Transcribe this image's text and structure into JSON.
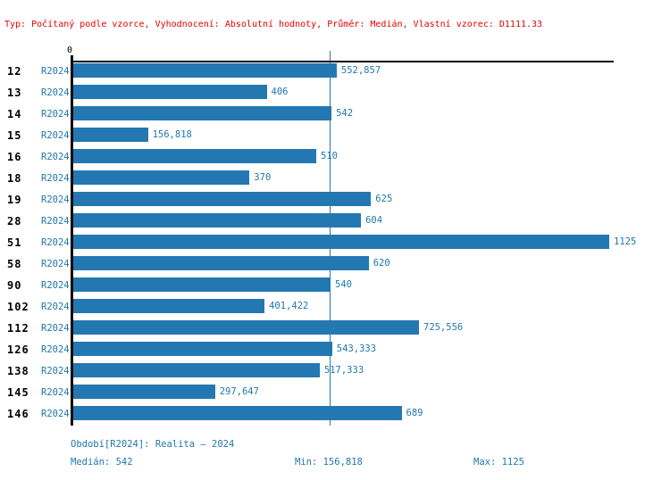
{
  "header": {
    "text": "Typ: Počítaný podle vzorce, Vyhodnocení: Absolutní hodnoty, Průměr: Medián, Vlastní vzorec: D1111.33"
  },
  "axis": {
    "zero_label": "0"
  },
  "chart_data": {
    "type": "bar",
    "orientation": "horizontal",
    "title": "",
    "xlabel": "",
    "ylabel": "",
    "xlim": [
      0,
      1125
    ],
    "grid": false,
    "categories": [
      "12",
      "13",
      "14",
      "15",
      "16",
      "18",
      "19",
      "28",
      "51",
      "58",
      "90",
      "102",
      "112",
      "126",
      "138",
      "145",
      "146"
    ],
    "series_label": "R2024",
    "values": [
      552.857,
      406,
      542,
      156.818,
      510,
      370,
      625,
      604,
      1125,
      620,
      540,
      401.422,
      725.556,
      543.333,
      517.333,
      297.647,
      689
    ],
    "value_labels": [
      "552,857",
      "406",
      "542",
      "156,818",
      "510",
      "370",
      "625",
      "604",
      "1125",
      "620",
      "540",
      "401,422",
      "725,556",
      "543,333",
      "517,333",
      "297,647",
      "689"
    ],
    "median_reference_line": 542
  },
  "footer": {
    "period": "Období[R2024]: Realita – 2024",
    "median": "Medián: 542",
    "min": "Min: 156,818",
    "max": "Max: 1125"
  },
  "colors": {
    "bar": "#2478b2",
    "blue_text": "#2178ad",
    "header_red": "#e60000",
    "axis_black": "#000000"
  }
}
